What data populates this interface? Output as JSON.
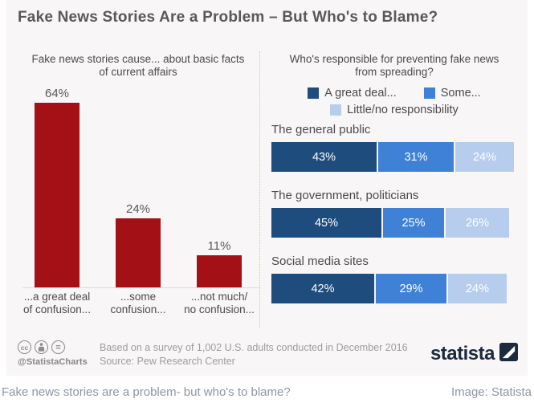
{
  "page": {
    "caption": "Fake news stories are a problem- but who's to blame?",
    "credit": "Image: Statista"
  },
  "infographic": {
    "title": "Fake News Stories Are a Problem – But Who's to Blame?",
    "background_color": "#f8f6f7",
    "footer": {
      "license_icons": [
        "cc-icon",
        "attribution-person-icon",
        "no-derivatives-icon"
      ],
      "handle": "@StatistaCharts",
      "note_line1": "Based on a survey of 1,002 U.S. adults conducted in December 2016",
      "note_line2": "Source: Pew Research Center",
      "brand_name": "statista",
      "brand_color": "#1b2a3c"
    }
  },
  "chart_data": [
    {
      "type": "bar",
      "title": "Fake news stories cause... about basic facts of current affairs",
      "title_lines": [
        "Fake news stories cause... about basic facts",
        "of current affairs"
      ],
      "categories": [
        "...a great deal of confusion...",
        "...some confusion...",
        "...not much/ no confusion..."
      ],
      "label_lines": [
        [
          "...a great deal",
          "of confusion..."
        ],
        [
          "...some",
          "confusion..."
        ],
        [
          "...not much/",
          "no confusion..."
        ]
      ],
      "values": [
        64,
        24,
        11
      ],
      "unit": "%",
      "bar_color": "#a31116",
      "ylim": [
        0,
        70
      ],
      "grid": false,
      "value_labels": "above-bars"
    },
    {
      "type": "bar",
      "subtype": "horizontal-stacked",
      "title": "Who's responsible for preventing fake news from spreading?",
      "title_lines": [
        "Who's responsible for preventing fake news",
        "from spreading?"
      ],
      "categories": [
        "The general public",
        "The government, politicians",
        "Social media sites"
      ],
      "series": [
        {
          "name": "A great deal...",
          "color": "#1d4c7d",
          "values": [
            43,
            45,
            42
          ]
        },
        {
          "name": "Some...",
          "color": "#3e81d7",
          "values": [
            31,
            25,
            29
          ]
        },
        {
          "name": "Little/no responsibility",
          "color": "#b7cdee",
          "values": [
            24,
            26,
            24
          ]
        }
      ],
      "unit": "%",
      "xlim": [
        0,
        100
      ],
      "legend_position": "top",
      "value_labels": "inside-segments"
    }
  ]
}
